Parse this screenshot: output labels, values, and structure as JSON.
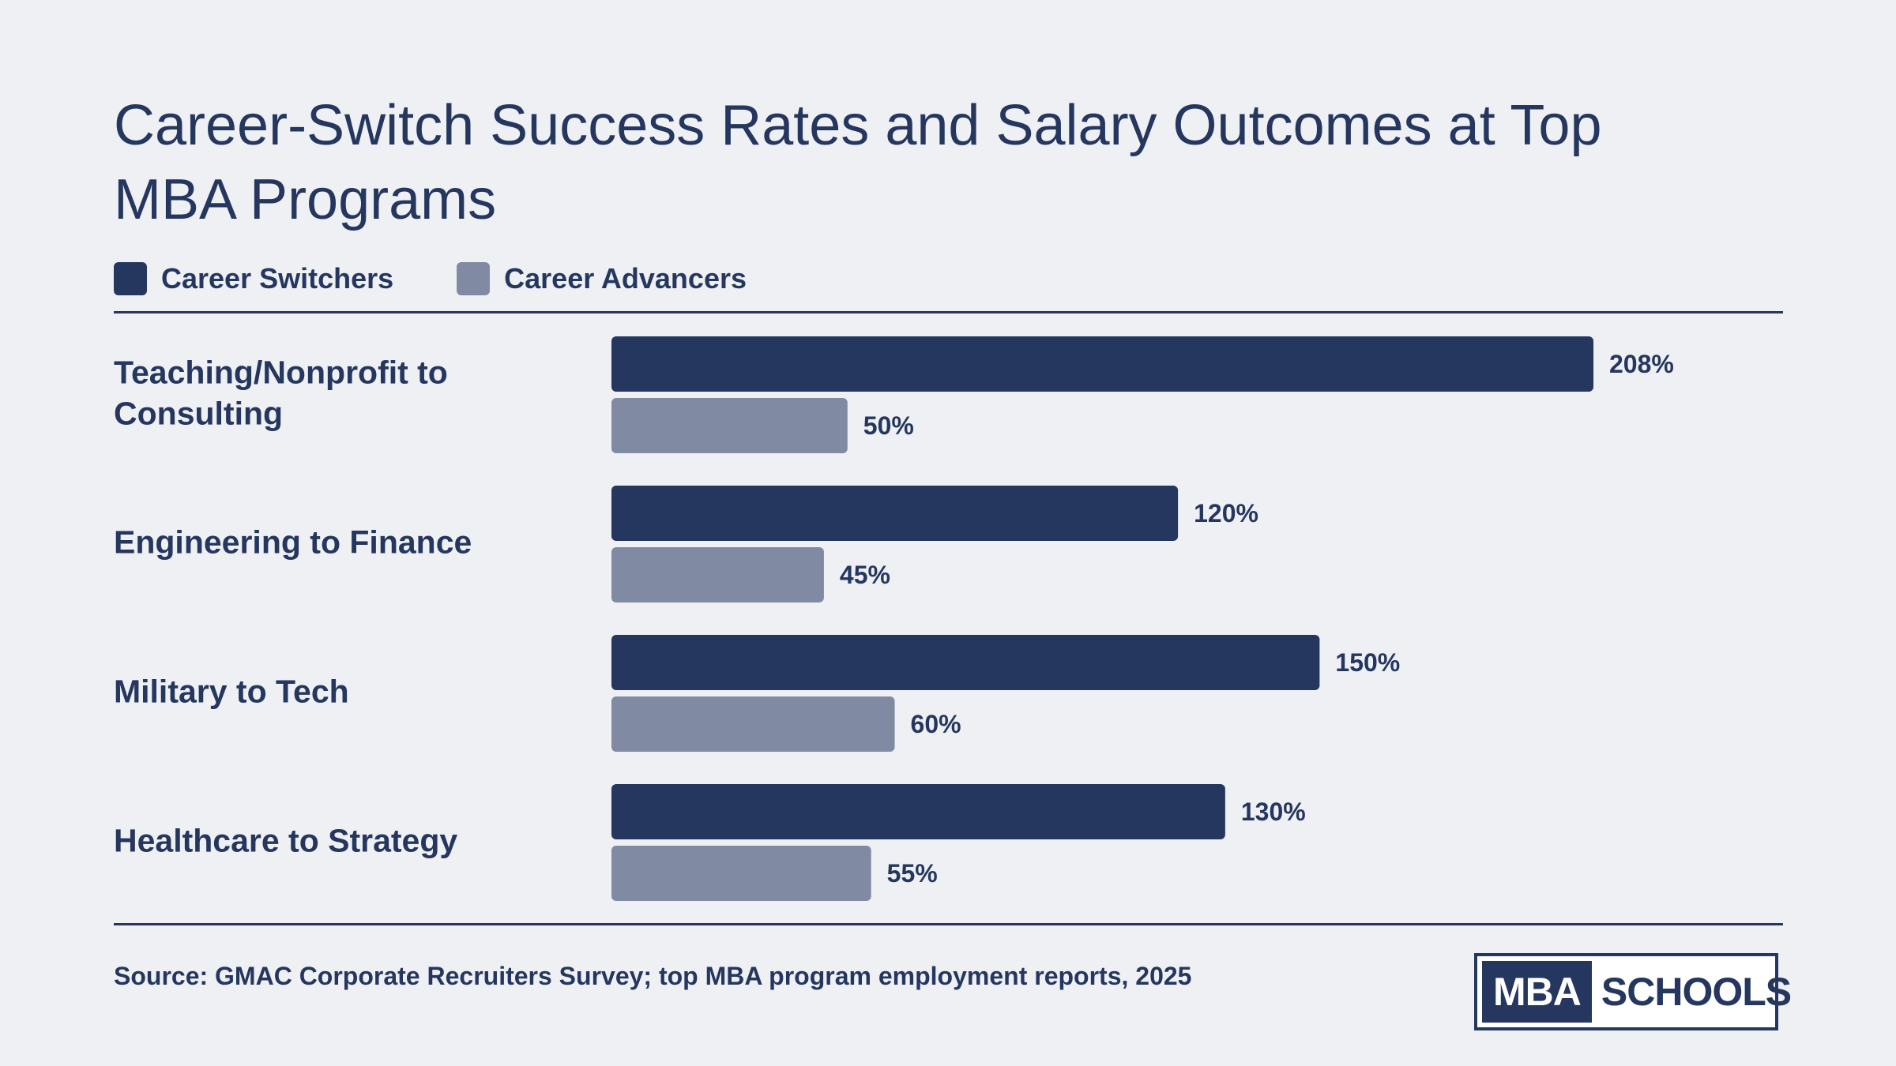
{
  "chart_data": {
    "type": "bar",
    "orientation": "horizontal",
    "title": "Career-Switch Success Rates and Salary Outcomes at Top MBA Programs",
    "categories": [
      "Teaching/Nonprofit to Consulting",
      "Engineering to Finance",
      "Military to Tech",
      "Healthcare to Strategy"
    ],
    "series": [
      {
        "name": "Career Switchers",
        "color": "#25375f",
        "values": [
          208,
          120,
          150,
          130
        ],
        "labels": [
          "208%",
          "120%",
          "150%",
          "130%"
        ]
      },
      {
        "name": "Career Advancers",
        "color": "#808ba3",
        "values": [
          50,
          45,
          60,
          55
        ],
        "labels": [
          "50%",
          "45%",
          "60%",
          "55%"
        ]
      }
    ],
    "legend_position": "top-left",
    "grid": false,
    "source": "Source: GMAC Corporate Recruiters Survey; top MBA program employment reports, 2025"
  },
  "logo": {
    "part1": "MBA",
    "part2": "SCHOOLS"
  }
}
